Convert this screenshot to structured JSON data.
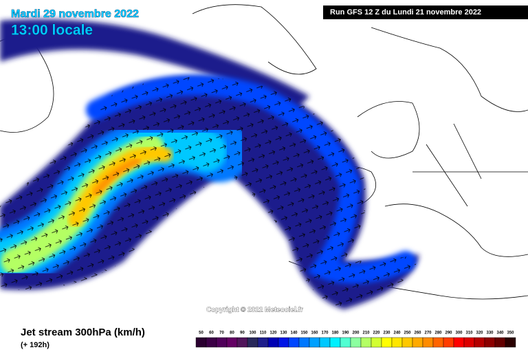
{
  "header": {
    "title": "Mardi 29 novembre 2022",
    "subtitle": "13:00 locale",
    "run": "Run GFS 12 Z du Lundi 21 novembre 2022"
  },
  "copyright": "Copyright © 2022 Meteociel.fr",
  "legend": {
    "title": "Jet stream 300hPa (km/h)",
    "lead": "(+ 192h)",
    "scale": [
      {
        "value": 50,
        "color": "#2a0030"
      },
      {
        "value": 60,
        "color": "#3c0046"
      },
      {
        "value": 70,
        "color": "#50005a"
      },
      {
        "value": 80,
        "color": "#640064"
      },
      {
        "value": 90,
        "color": "#50145a"
      },
      {
        "value": 100,
        "color": "#28285a"
      },
      {
        "value": 110,
        "color": "#1e1e8c"
      },
      {
        "value": 120,
        "color": "#0000b4"
      },
      {
        "value": 130,
        "color": "#0014e6"
      },
      {
        "value": 140,
        "color": "#0046ff"
      },
      {
        "value": 150,
        "color": "#0078ff"
      },
      {
        "value": 160,
        "color": "#00a0ff"
      },
      {
        "value": 170,
        "color": "#00c8ff"
      },
      {
        "value": 180,
        "color": "#00f0ff"
      },
      {
        "value": 190,
        "color": "#50ffd2"
      },
      {
        "value": 200,
        "color": "#8cffa0"
      },
      {
        "value": 210,
        "color": "#b4ff64"
      },
      {
        "value": 220,
        "color": "#d2ff32"
      },
      {
        "value": 230,
        "color": "#ffff00"
      },
      {
        "value": 240,
        "color": "#ffe600"
      },
      {
        "value": 250,
        "color": "#ffc800"
      },
      {
        "value": 260,
        "color": "#ffaa00"
      },
      {
        "value": 270,
        "color": "#ff8c00"
      },
      {
        "value": 280,
        "color": "#ff6400"
      },
      {
        "value": 290,
        "color": "#ff3c00"
      },
      {
        "value": 300,
        "color": "#ff0000"
      },
      {
        "value": 310,
        "color": "#dc0000"
      },
      {
        "value": 320,
        "color": "#b40000"
      },
      {
        "value": 330,
        "color": "#8c0000"
      },
      {
        "value": 340,
        "color": "#640000"
      },
      {
        "value": 350,
        "color": "#2a0000"
      }
    ]
  }
}
